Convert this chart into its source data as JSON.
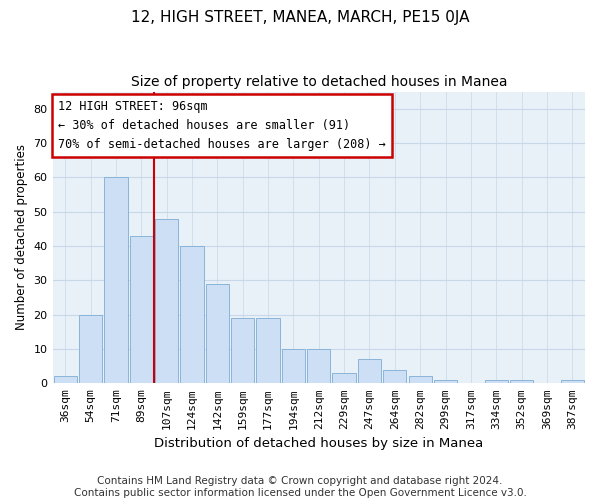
{
  "title": "12, HIGH STREET, MANEA, MARCH, PE15 0JA",
  "subtitle": "Size of property relative to detached houses in Manea",
  "xlabel": "Distribution of detached houses by size in Manea",
  "ylabel": "Number of detached properties",
  "categories": [
    "36sqm",
    "54sqm",
    "71sqm",
    "89sqm",
    "107sqm",
    "124sqm",
    "142sqm",
    "159sqm",
    "177sqm",
    "194sqm",
    "212sqm",
    "229sqm",
    "247sqm",
    "264sqm",
    "282sqm",
    "299sqm",
    "317sqm",
    "334sqm",
    "352sqm",
    "369sqm",
    "387sqm"
  ],
  "values": [
    2,
    20,
    60,
    43,
    48,
    40,
    29,
    19,
    19,
    10,
    10,
    3,
    7,
    4,
    2,
    1,
    0,
    1,
    1,
    0,
    1
  ],
  "bar_color": "#ccdff5",
  "bar_edge_color": "#8ab4d8",
  "bar_edge_width": 0.7,
  "vline_x": 3.5,
  "vline_color": "#cc0000",
  "annotation_lines": [
    "12 HIGH STREET: 96sqm",
    "← 30% of detached houses are smaller (91)",
    "70% of semi-detached houses are larger (208) →"
  ],
  "annotation_box_color": "#cc0000",
  "ylim": [
    0,
    85
  ],
  "yticks": [
    0,
    10,
    20,
    30,
    40,
    50,
    60,
    70,
    80
  ],
  "grid_color": "#c8d8e8",
  "plot_bg_color": "#e8f0f8",
  "fig_bg_color": "#ffffff",
  "footer": "Contains HM Land Registry data © Crown copyright and database right 2024.\nContains public sector information licensed under the Open Government Licence v3.0.",
  "title_fontsize": 11,
  "subtitle_fontsize": 10,
  "xlabel_fontsize": 9.5,
  "ylabel_fontsize": 8.5,
  "tick_fontsize": 8,
  "annotation_fontsize": 8.5,
  "footer_fontsize": 7.5
}
